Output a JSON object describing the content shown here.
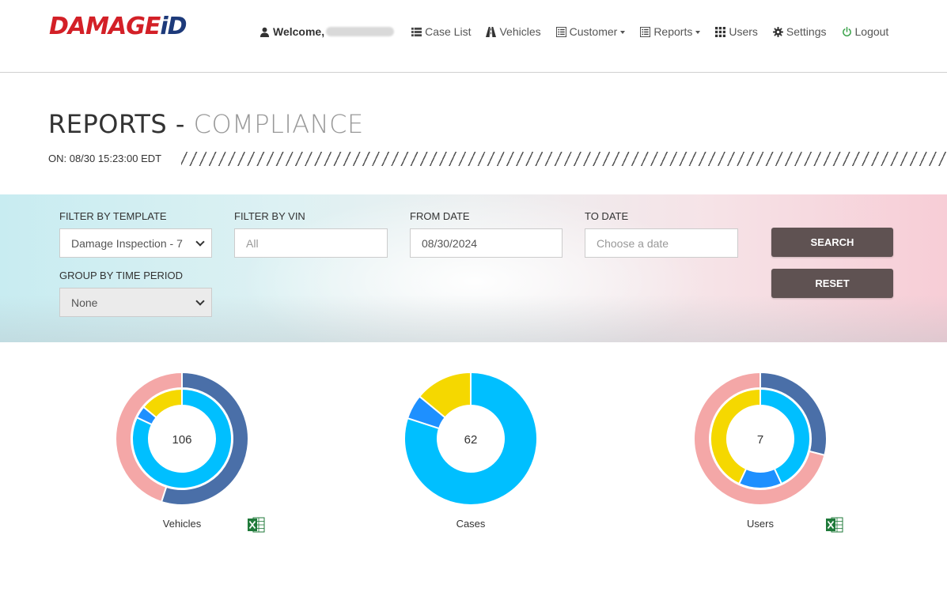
{
  "brand": {
    "logo_part1": "DAMAGE",
    "logo_part2": "iD"
  },
  "nav": {
    "welcome": "Welcome,",
    "case_list": "Case List",
    "vehicles": "Vehicles",
    "customer": "Customer",
    "reports": "Reports",
    "users": "Users",
    "settings": "Settings",
    "logout": "Logout"
  },
  "page": {
    "title_main": "REPORTS -",
    "title_sub": "COMPLIANCE",
    "timestamp": "ON: 08/30 15:23:00 EDT"
  },
  "filters": {
    "template_label": "FILTER BY TEMPLATE",
    "template_value": "Damage Inspection - 7",
    "vin_label": "FILTER BY VIN",
    "vin_placeholder": "All",
    "from_label": "FROM DATE",
    "from_value": "08/30/2024",
    "to_label": "TO DATE",
    "to_placeholder": "Choose a date",
    "group_label": "GROUP BY TIME PERIOD",
    "group_value": "None",
    "search_label": "SEARCH",
    "reset_label": "RESET"
  },
  "colors": {
    "dark_blue": "#4a6fa8",
    "pink": "#f4a7a7",
    "cyan": "#00bfff",
    "blue": "#1e90ff",
    "yellow": "#f5d800",
    "button": "#5f5252",
    "logo_red": "#d32027",
    "logo_blue": "#1d3a7a",
    "excel_green": "#1f7a3a"
  },
  "chart_data": [
    {
      "type": "pie",
      "variant": "double-donut",
      "center_value": "106",
      "label": "Vehicles",
      "outer": [
        {
          "color": "#4a6fa8",
          "value": 0.55
        },
        {
          "color": "#f4a7a7",
          "value": 0.45
        }
      ],
      "inner": [
        {
          "color": "#00bfff",
          "value": 0.82
        },
        {
          "color": "#1e90ff",
          "value": 0.04
        },
        {
          "color": "#f5d800",
          "value": 0.14
        }
      ],
      "export_icon": "excel-icon"
    },
    {
      "type": "pie",
      "variant": "donut",
      "center_value": "62",
      "label": "Cases",
      "inner": [
        {
          "color": "#00bfff",
          "value": 0.8
        },
        {
          "color": "#1e90ff",
          "value": 0.06
        },
        {
          "color": "#f5d800",
          "value": 0.14
        }
      ]
    },
    {
      "type": "pie",
      "variant": "double-donut",
      "center_value": "7",
      "label": "Users",
      "outer": [
        {
          "color": "#4a6fa8",
          "value": 0.29
        },
        {
          "color": "#f4a7a7",
          "value": 0.71
        }
      ],
      "inner": [
        {
          "color": "#00bfff",
          "value": 0.43
        },
        {
          "color": "#1e90ff",
          "value": 0.14
        },
        {
          "color": "#f5d800",
          "value": 0.43
        }
      ],
      "export_icon": "excel-icon"
    }
  ]
}
